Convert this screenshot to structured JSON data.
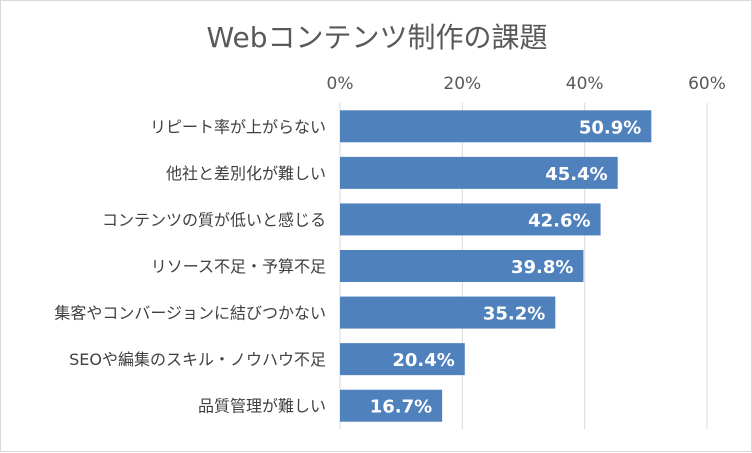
{
  "chart_data": {
    "type": "bar",
    "orientation": "horizontal",
    "title": "Webコンテンツ制作の課題",
    "categories": [
      "リピート率が上がらない",
      "他社と差別化が難しい",
      "コンテンツの質が低いと感じる",
      "リソース不足・予算不足",
      "集客やコンバージョンに結びつかない",
      "SEOや編集のスキル・ノウハウ不足",
      "品質管理が難しい"
    ],
    "values": [
      50.9,
      45.4,
      42.6,
      39.8,
      35.2,
      20.4,
      16.7
    ],
    "data_labels": [
      "50.9%",
      "45.4%",
      "42.6%",
      "39.8%",
      "35.2%",
      "20.4%",
      "16.7%"
    ],
    "xlim": [
      0,
      60
    ],
    "x_ticks": [
      "0%",
      "20%",
      "40%",
      "60%"
    ],
    "x_axis_position": "top",
    "grid": true,
    "bar_color": "#4f81bd"
  }
}
